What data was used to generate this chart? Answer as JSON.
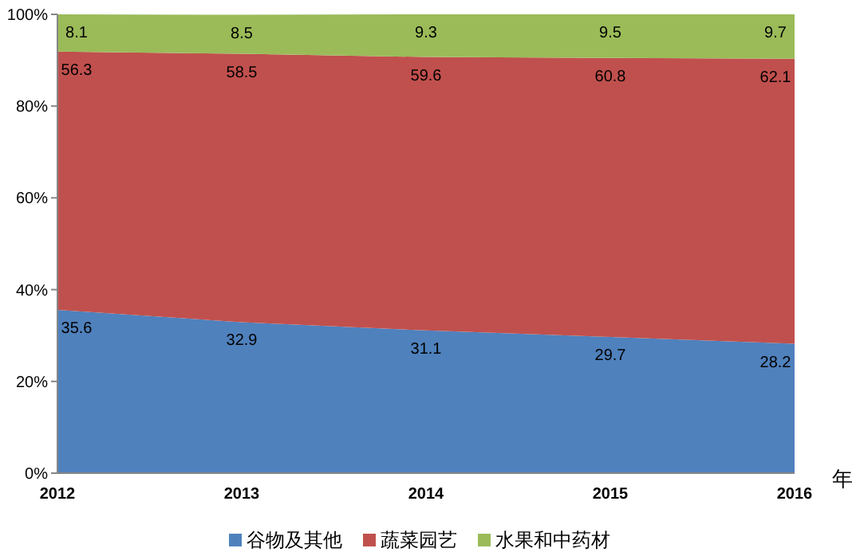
{
  "chart_data": {
    "type": "area",
    "stacked": true,
    "xlabel": "年",
    "categories": [
      "2012",
      "2013",
      "2014",
      "2015",
      "2016"
    ],
    "series": [
      {
        "name": "谷物及其他",
        "color": "#4f81bd",
        "values": [
          35.6,
          32.9,
          31.1,
          29.7,
          28.2
        ]
      },
      {
        "name": "蔬菜园艺",
        "color": "#c0504d",
        "values": [
          56.3,
          58.5,
          59.6,
          60.8,
          62.1
        ]
      },
      {
        "name": "水果和中药材",
        "color": "#9bbb59",
        "values": [
          8.1,
          8.5,
          9.3,
          9.5,
          9.7
        ]
      }
    ],
    "ylim": [
      0,
      100
    ],
    "yticks": [
      {
        "value": 0,
        "label": "0%"
      },
      {
        "value": 20,
        "label": "20%"
      },
      {
        "value": 40,
        "label": "40%"
      },
      {
        "value": 60,
        "label": "60%"
      },
      {
        "value": 80,
        "label": "80%"
      },
      {
        "value": 100,
        "label": "100%"
      }
    ],
    "data_labels": true,
    "legend": "bottom",
    "grid": false
  }
}
